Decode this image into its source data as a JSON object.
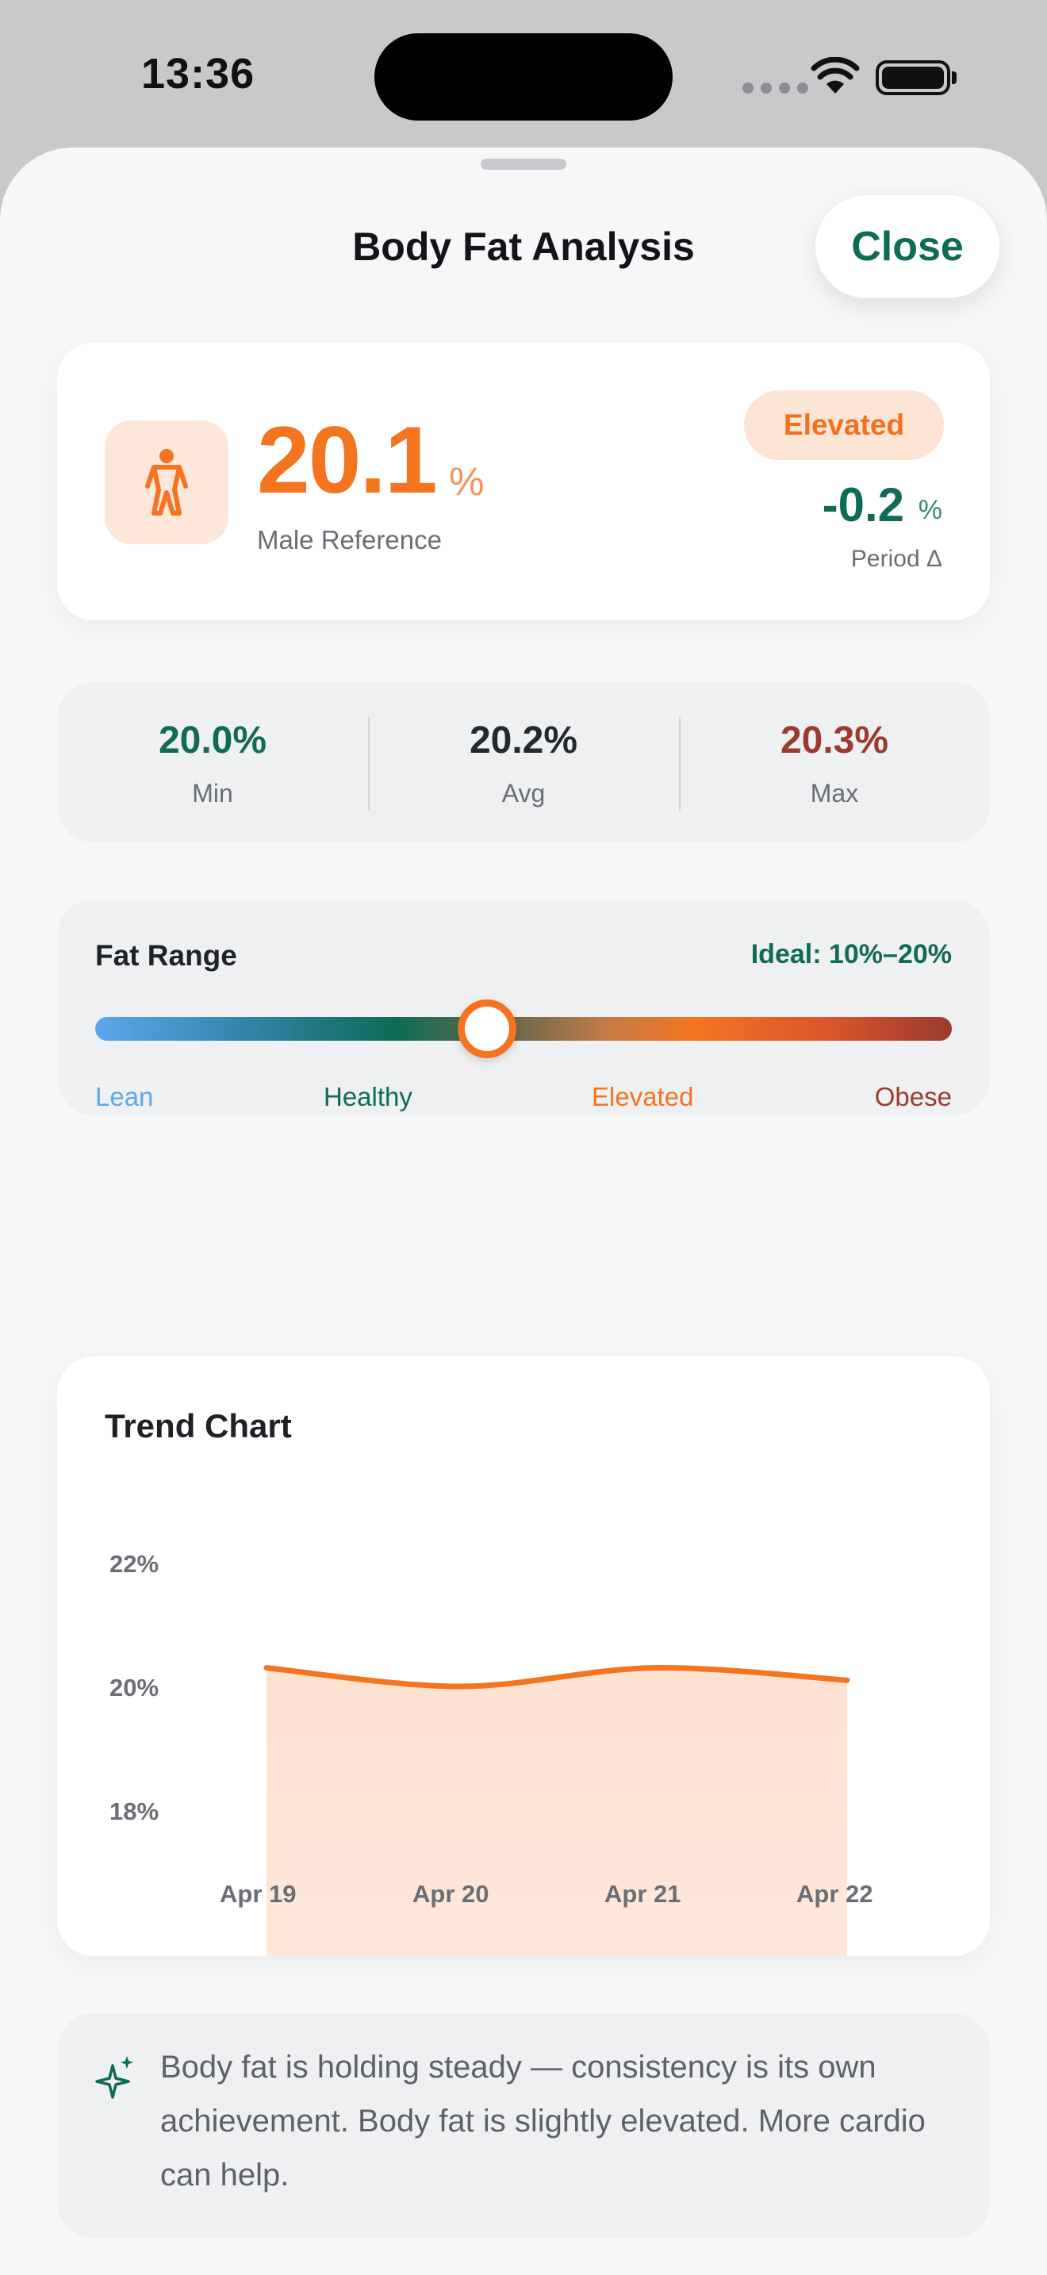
{
  "status_bar": {
    "time": "13:36"
  },
  "sheet": {
    "title": "Body Fat Analysis",
    "close_label": "Close"
  },
  "summary": {
    "icon": "person-icon",
    "value": "20.1",
    "unit": "%",
    "reference": "Male Reference",
    "status": "Elevated",
    "delta_value": "-0.2",
    "delta_unit": "%",
    "delta_label": "Period Δ"
  },
  "stats": [
    {
      "value": "20.0%",
      "label": "Min",
      "color": "#0f6b55"
    },
    {
      "value": "20.2%",
      "label": "Avg",
      "color": "#24292e"
    },
    {
      "value": "20.3%",
      "label": "Max",
      "color": "#9b3b2e"
    }
  ],
  "fat_range": {
    "title": "Fat Range",
    "ideal": "Ideal: 10%–20%",
    "current_fraction": 0.457,
    "zones": [
      {
        "label": "Lean",
        "color": "#5da7ee"
      },
      {
        "label": "Healthy",
        "color": "#0f6b55"
      },
      {
        "label": "Elevated",
        "color": "#f47420"
      },
      {
        "label": "Obese",
        "color": "#9b3b2e"
      }
    ]
  },
  "chart_data": {
    "type": "area",
    "title": "Trend Chart",
    "x": [
      "Apr 19",
      "Apr 20",
      "Apr 21",
      "Apr 22"
    ],
    "series": [
      {
        "values": [
          20.3,
          20.0,
          20.3,
          20.1
        ]
      }
    ],
    "yticks": [
      "22%",
      "20%",
      "18%"
    ],
    "ylim": [
      17,
      22.5
    ],
    "line_color": "#f47420",
    "fill_color": "#fde3d3",
    "grid": false
  },
  "insight": {
    "icon": "sparkle-icon",
    "text": "Body fat is holding steady — consistency is its own achievement. Body fat is slightly elevated. More cardio can help."
  }
}
